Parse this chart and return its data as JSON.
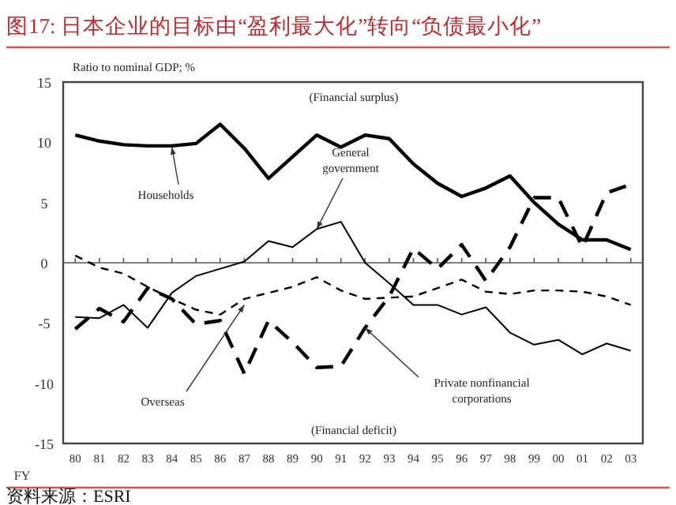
{
  "chart_data": {
    "type": "line",
    "title": "图17:  日本企业的目标由“盈利最大化”转向“负债最小化”",
    "ylabel": "Ratio to nominal GDP; %",
    "xlabel": "FY",
    "categories": [
      "80",
      "81",
      "82",
      "83",
      "84",
      "85",
      "86",
      "87",
      "88",
      "89",
      "90",
      "91",
      "92",
      "93",
      "94",
      "95",
      "96",
      "97",
      "98",
      "99",
      "00",
      "01",
      "02",
      "03"
    ],
    "series": [
      {
        "color": "#000000",
        "line_style": "solid",
        "values": [
          10.6,
          10.1,
          9.8,
          9.7,
          9.7,
          9.9,
          11.5,
          9.5,
          7.0,
          8.8,
          10.6,
          9.6,
          10.6,
          10.3,
          8.2,
          6.6,
          5.5,
          6.2,
          7.2,
          5.0,
          3.2,
          1.9,
          1.9,
          1.1
        ]
      },
      {
        "color": "#000000",
        "line_style": "solid",
        "values": [
          -4.5,
          -4.6,
          -3.5,
          -5.4,
          -2.5,
          -1.1,
          -0.5,
          0.1,
          1.8,
          1.3,
          2.8,
          3.4,
          0,
          -1.7,
          -3.5,
          -3.5,
          -4.3,
          -3.7,
          -5.8,
          -6.8,
          -6.4,
          -7.6,
          -6.7,
          -7.3
        ]
      },
      {
        "color": "#000000",
        "line_style": "dashed",
        "values": [
          0.6,
          -0.4,
          -0.9,
          -2.0,
          -3.0,
          -3.9,
          -4.3,
          -3.0,
          -2.5,
          -2.0,
          -1.2,
          -2.3,
          -3.0,
          -2.9,
          -2.8,
          -2.1,
          -1.4,
          -2.4,
          -2.6,
          -2.3,
          -2.3,
          -2.4,
          -2.8,
          -3.5
        ]
      },
      {
        "color": "#000000",
        "line_style": "dashed",
        "values": [
          -5.5,
          -3.8,
          -4.9,
          -2.1,
          -3.0,
          -5.1,
          -4.8,
          -9.2,
          -4.8,
          -6.6,
          -8.7,
          -8.6,
          -5.4,
          -2.8,
          1.2,
          -0.5,
          1.5,
          -1.5,
          1.3,
          5.4,
          5.4,
          1.3,
          5.8,
          6.5
        ]
      }
    ],
    "ylim": [
      -15,
      15
    ],
    "yticks": [
      -15,
      -10,
      -5,
      0,
      5,
      10,
      15
    ],
    "grid": false,
    "marker": "none",
    "ref_lines": [
      {
        "axis": "y",
        "value": 0,
        "color": "#555555"
      }
    ],
    "annotations": [
      {
        "text": "Households",
        "x": "84",
        "y": 9.6
      },
      {
        "text": "General government",
        "x": "90",
        "y": 2.8
      },
      {
        "text": "Overseas",
        "x": "87",
        "y": -3.5
      },
      {
        "text": "Private nonfinancial corporations",
        "x": "92",
        "y": -5.4
      },
      "(Financial surplus)",
      "(Financial deficit)",
      "资料来源：ESRI"
    ]
  }
}
